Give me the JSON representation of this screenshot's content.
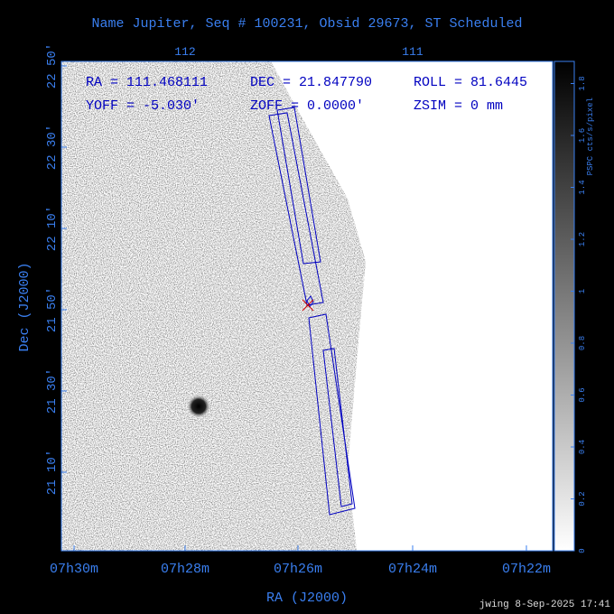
{
  "title": "Name Jupiter, Seq # 100231, Obsid 29673, ST Scheduled",
  "info": {
    "ra": "RA = 111.468111",
    "dec": "DEC = 21.847790",
    "roll": "ROLL = 81.6445",
    "yoff": "YOFF =  -5.030'",
    "zoff": "ZOFF =  0.0000'",
    "zsim": "ZSIM = 0 mm"
  },
  "x_axis": {
    "label": "RA (J2000)",
    "ticks": [
      "07h30m",
      "07h28m",
      "07h26m",
      "07h24m",
      "07h22m"
    ]
  },
  "top_axis": {
    "ticks": [
      "112",
      "111"
    ]
  },
  "y_axis": {
    "label": "Dec (J2000)",
    "ticks": [
      "22 50'",
      "22 30'",
      "22 10'",
      "21 50'",
      "21 30'",
      "21 10'"
    ]
  },
  "colorbar": {
    "label": "PSPC cts/s/pixel",
    "ticks": [
      "0",
      "0.2",
      "0.4",
      "0.6",
      "0.8",
      "1",
      "1.2",
      "1.4",
      "1.6",
      "1.8"
    ]
  },
  "footer": "jwing  8-Sep-2025 17:41"
}
